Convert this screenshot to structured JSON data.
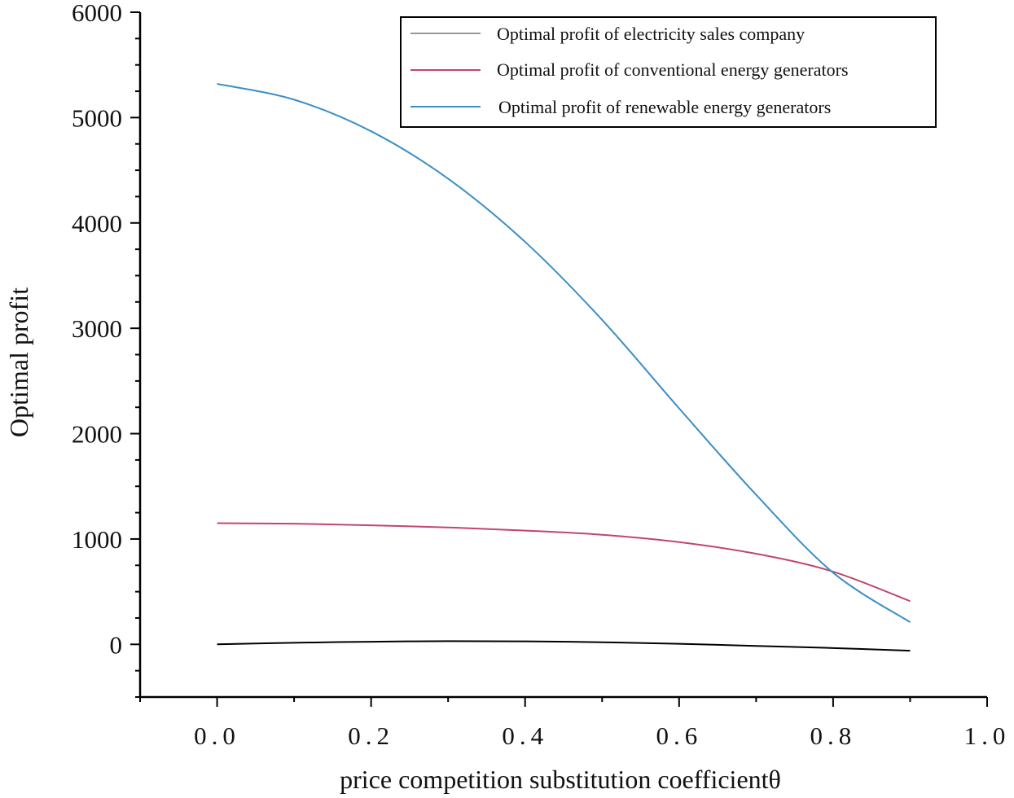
{
  "chart_data": {
    "type": "line",
    "title": "",
    "xlabel": "price competition substitution coefficientθ",
    "ylabel": "Optimal profit",
    "xlim": [
      -0.1,
      1.0
    ],
    "ylim": [
      -500,
      6000
    ],
    "x_ticks": [
      0.0,
      0.2,
      0.4,
      0.6,
      0.8,
      1.0
    ],
    "x_tick_labels": [
      "0.0",
      "0.2",
      "0.4",
      "0.6",
      "0.8",
      "1.0"
    ],
    "y_ticks": [
      0,
      1000,
      2000,
      3000,
      4000,
      5000,
      6000
    ],
    "y_tick_labels": [
      "0",
      "1000",
      "2000",
      "3000",
      "4000",
      "5000",
      "6000"
    ],
    "grid": false,
    "legend_position": "top-right",
    "x": [
      0.0,
      0.1,
      0.2,
      0.3,
      0.4,
      0.5,
      0.6,
      0.7,
      0.8,
      0.9
    ],
    "series": [
      {
        "name": "Optimal profit of electricity sales company",
        "legend_color": "#999999",
        "color": "#000000",
        "values": [
          0,
          15,
          25,
          30,
          28,
          20,
          5,
          -15,
          -35,
          -60
        ]
      },
      {
        "name": "Optimal profit of conventional energy generators",
        "legend_color": "#c0476a",
        "color": "#c0476a",
        "values": [
          1150,
          1145,
          1130,
          1110,
          1080,
          1040,
          970,
          860,
          690,
          410
        ]
      },
      {
        "name": "Optimal profit of renewable energy generators",
        "legend_color": "#3b8fc4",
        "color": "#3b8fc4",
        "values": [
          5320,
          5170,
          4870,
          4420,
          3820,
          3080,
          2240,
          1420,
          680,
          210
        ]
      }
    ]
  }
}
